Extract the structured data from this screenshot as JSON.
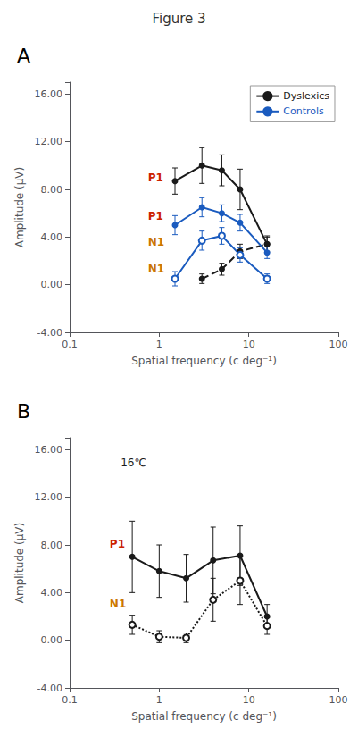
{
  "title": "Figure 3",
  "chart_data": [
    {
      "type": "line",
      "title": "A",
      "log": "x",
      "grid": false,
      "legend": "upper right",
      "xlabel": "Spatial frequency (c deg⁻¹)",
      "ylabel": "Amplitude (μV)",
      "xlim": [
        0.1,
        100
      ],
      "xticks": [
        0.1,
        1,
        10,
        100
      ],
      "ylim": [
        -4,
        17
      ],
      "yticks": [
        {
          "value": -4,
          "label": "-4.00"
        },
        {
          "value": 0,
          "label": "0.00"
        },
        {
          "value": 4,
          "label": "4.00"
        },
        {
          "value": 8,
          "label": "8.00"
        },
        {
          "value": 12,
          "label": "12.00"
        },
        {
          "value": 16,
          "label": "16.00"
        }
      ],
      "series": [
        {
          "name": "Dyslexics",
          "color": "#1a1a1a",
          "marker": "circle",
          "line_style": "solid",
          "x": [
            1.5,
            3.0,
            5.0,
            8.0,
            16.0
          ],
          "values": [
            8.7,
            10.0,
            9.6,
            8.0,
            3.4
          ],
          "yerr": [
            1.1,
            1.5,
            1.3,
            1.7,
            0.7
          ]
        },
        {
          "color": "#1a1a1a",
          "marker": "circle",
          "line_style": "dashed",
          "x": [
            3.0,
            5.0,
            8.0,
            16.0
          ],
          "values": [
            0.5,
            1.3,
            2.8,
            3.4
          ],
          "yerr": [
            0.4,
            0.5,
            0.6,
            0.6
          ]
        },
        {
          "name": "Controls",
          "color": "#1a5bbf",
          "marker": "circle",
          "line_style": "solid",
          "x": [
            1.5,
            3.0,
            5.0,
            8.0,
            16.0
          ],
          "values": [
            5.0,
            6.5,
            6.0,
            5.2,
            2.7
          ],
          "yerr": [
            0.8,
            0.8,
            0.7,
            0.7,
            0.5
          ]
        },
        {
          "color": "#1a5bbf",
          "marker": "open_circle",
          "line_style": "solid",
          "x": [
            1.5,
            3.0,
            5.0,
            8.0,
            16.0
          ],
          "values": [
            0.5,
            3.7,
            4.1,
            2.5,
            0.5
          ],
          "yerr": [
            0.6,
            0.8,
            0.7,
            0.6,
            0.4
          ]
        }
      ],
      "annotations": [
        {
          "text": "P1",
          "x": 0.75,
          "y": 8.5,
          "color": "#cc2200"
        },
        {
          "text": "P1",
          "x": 0.75,
          "y": 5.3,
          "color": "#cc2200"
        },
        {
          "text": "N1",
          "x": 0.75,
          "y": 3.1,
          "color": "#cc7700"
        },
        {
          "text": "N1",
          "x": 0.75,
          "y": 0.9,
          "color": "#cc7700"
        }
      ]
    },
    {
      "type": "line",
      "title": "B",
      "log": "x",
      "grid": false,
      "xlabel": "Spatial frequency (c deg⁻¹)",
      "ylabel": "Amplitude (μV)",
      "xlim": [
        0.1,
        100
      ],
      "xticks": [
        0.1,
        1,
        10,
        100
      ],
      "ylim": [
        -4,
        17
      ],
      "yticks": [
        {
          "value": -4,
          "label": "-4.00"
        },
        {
          "value": 0,
          "label": "0.00"
        },
        {
          "value": 4,
          "label": "4.00"
        },
        {
          "value": 8,
          "label": "8.00"
        },
        {
          "value": 12,
          "label": "12.00"
        },
        {
          "value": 16,
          "label": "16.00"
        }
      ],
      "series": [
        {
          "color": "#1a1a1a",
          "marker": "circle",
          "line_style": "solid",
          "x": [
            0.5,
            1.0,
            2.0,
            4.0,
            8.0,
            16.0
          ],
          "values": [
            7.0,
            5.8,
            5.2,
            6.7,
            7.1,
            2.0
          ],
          "yerr": [
            3.0,
            2.2,
            2.0,
            2.8,
            2.5,
            1.0
          ]
        },
        {
          "color": "#1a1a1a",
          "marker": "open_circle",
          "line_style": "dotted",
          "x": [
            0.5,
            1.0,
            2.0,
            4.0,
            8.0,
            16.0
          ],
          "values": [
            1.3,
            0.3,
            0.2,
            3.4,
            5.0,
            1.2
          ],
          "yerr": [
            0.8,
            0.5,
            0.4,
            1.8,
            2.0,
            0.7
          ]
        }
      ],
      "annotations": [
        {
          "text": "16℃",
          "color": "#1a1a1a"
        },
        {
          "text": "P1",
          "x": 0.28,
          "y": 7.6,
          "color": "#cc2200"
        },
        {
          "text": "N1",
          "x": 0.28,
          "y": 2.6,
          "color": "#cc7700"
        }
      ]
    }
  ]
}
